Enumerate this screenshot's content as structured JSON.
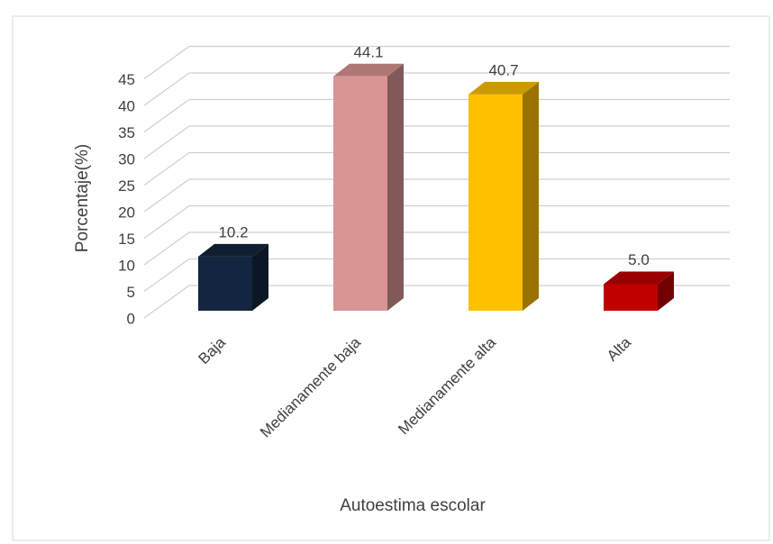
{
  "chart_data": {
    "type": "bar3d",
    "x_label": "Autoestima escolar",
    "y_label": "Porcentaje(%)",
    "categories": [
      "Baja",
      "Medianamente baja",
      "Medianamente alta",
      "Alta"
    ],
    "values": [
      10.2,
      44.1,
      40.7,
      5.0
    ],
    "value_labels": [
      "10.2",
      "44.1",
      "40.7",
      "5.0"
    ],
    "colors": [
      "#14263f",
      "#d99594",
      "#ffc000",
      "#c00000"
    ],
    "ylim": [
      0,
      45
    ],
    "yticks": [
      0,
      5,
      10,
      15,
      20,
      25,
      30,
      35,
      40,
      45
    ],
    "grid": true
  }
}
